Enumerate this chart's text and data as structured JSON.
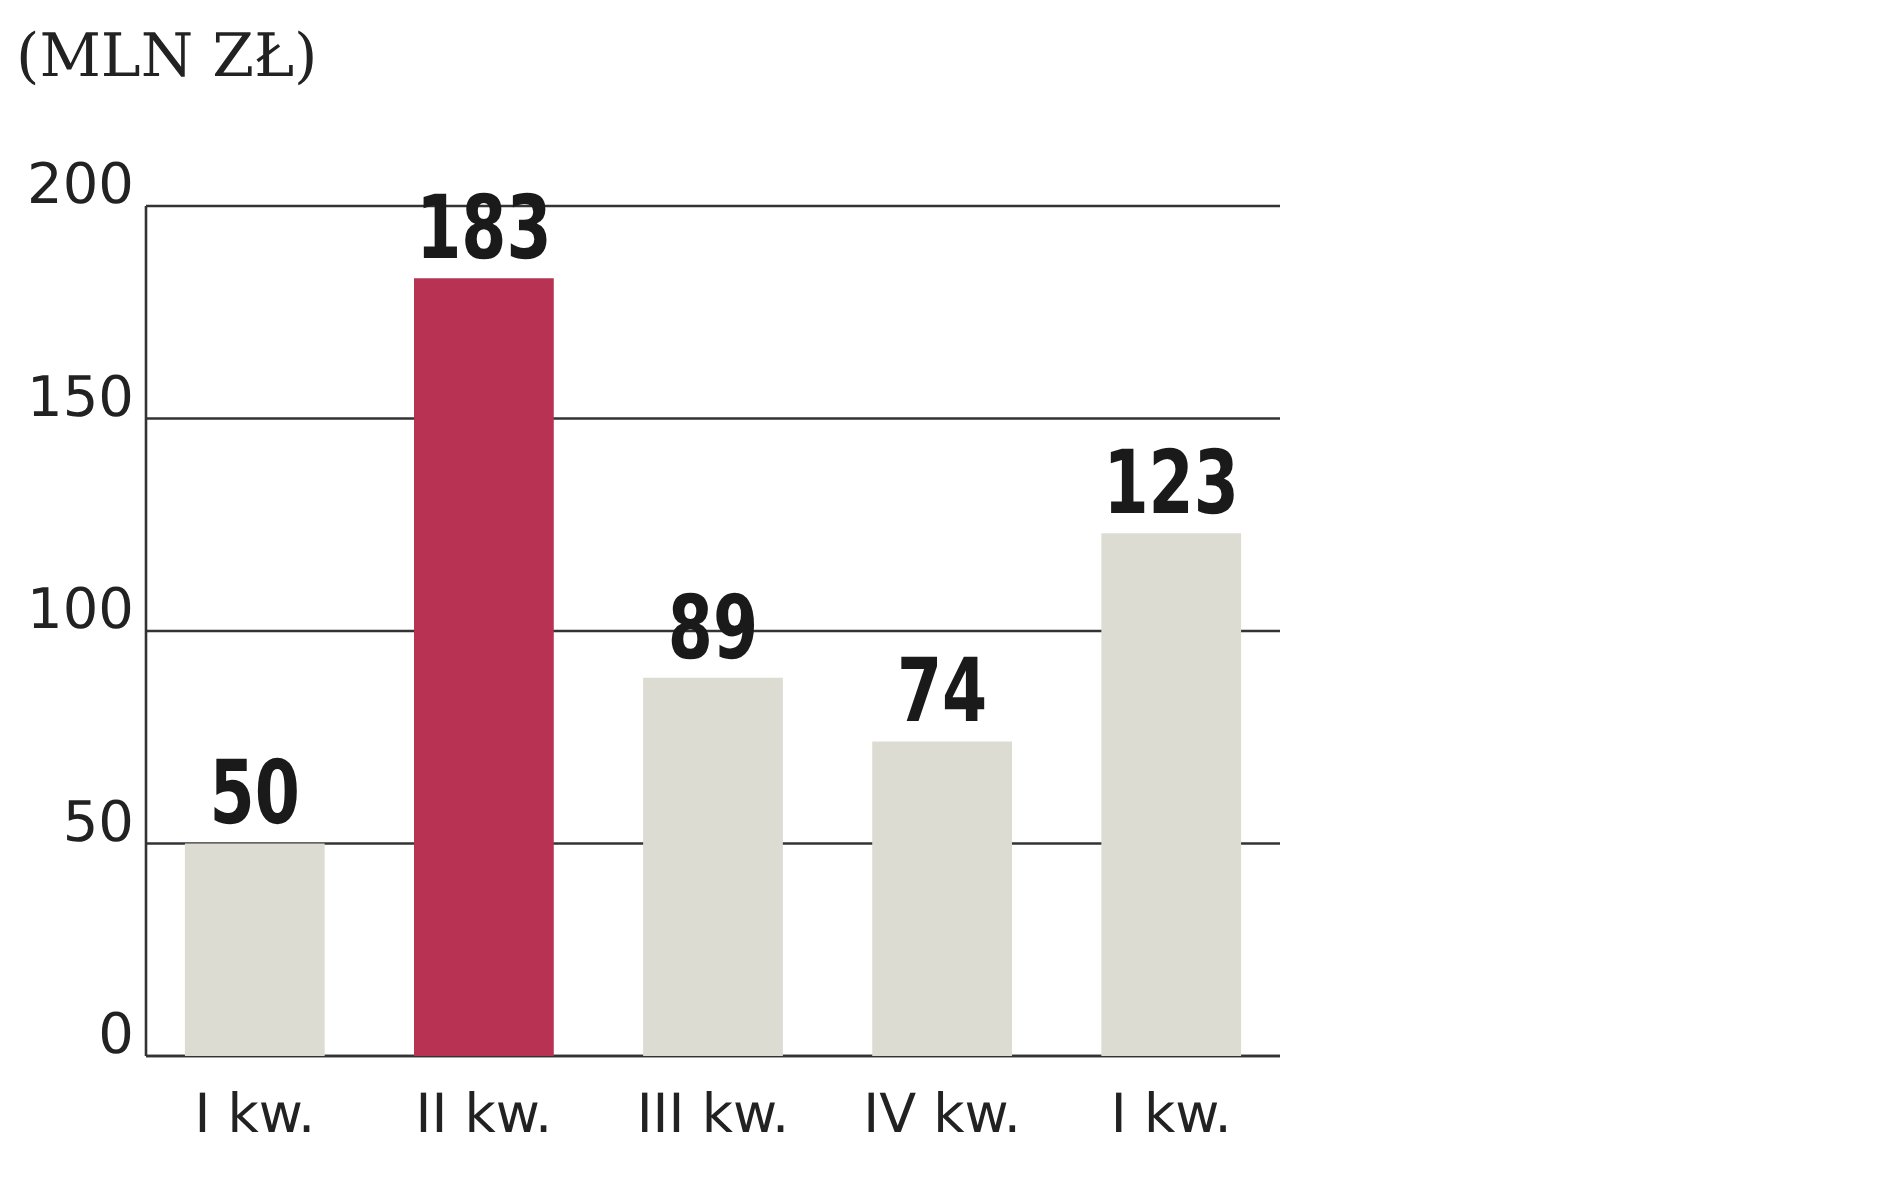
{
  "chart_data": {
    "type": "bar",
    "title": "(MLN ZŁ)",
    "categories": [
      "I kw.",
      "II kw.",
      "III kw.",
      "IV kw.",
      "I kw."
    ],
    "values": [
      50,
      183,
      89,
      74,
      123
    ],
    "colors": [
      "#dddcd2",
      "#b83253",
      "#dddcd2",
      "#dddcd2",
      "#dddcd2"
    ],
    "ylim": [
      0,
      200
    ],
    "yticks": [
      0,
      50,
      100,
      150,
      200
    ],
    "grid": "y",
    "data_labels": true
  }
}
